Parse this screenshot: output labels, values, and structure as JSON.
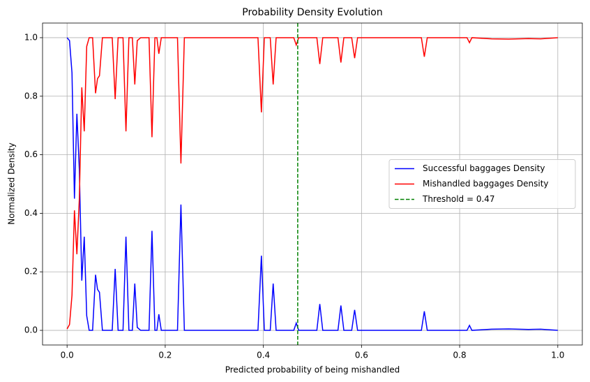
{
  "chart_data": {
    "type": "line",
    "title": "Probability Density Evolution",
    "xlabel": "Predicted probability of being mishandled",
    "ylabel": "Normalized Density",
    "x": [
      0,
      0.005,
      0.01,
      0.015,
      0.02,
      0.025,
      0.03,
      0.035,
      0.04,
      0.045,
      0.052,
      0.058,
      0.062,
      0.066,
      0.072,
      0.092,
      0.098,
      0.104,
      0.114,
      0.12,
      0.126,
      0.133,
      0.138,
      0.143,
      0.15,
      0.167,
      0.173,
      0.179,
      0.183,
      0.187,
      0.192,
      0.225,
      0.232,
      0.239,
      0.389,
      0.396,
      0.402,
      0.414,
      0.42,
      0.426,
      0.462,
      0.467,
      0.472,
      0.509,
      0.515,
      0.521,
      0.552,
      0.558,
      0.564,
      0.58,
      0.586,
      0.592,
      0.722,
      0.728,
      0.734,
      0.815,
      0.82,
      0.825,
      0.865,
      0.9,
      0.94,
      0.965,
      1.0
    ],
    "series": [
      {
        "name": "Successful baggages Density",
        "color": "#0000ff",
        "values": [
          1.0,
          0.99,
          0.88,
          0.45,
          0.74,
          0.55,
          0.17,
          0.32,
          0.05,
          0.0,
          0.0,
          0.19,
          0.14,
          0.13,
          0.0,
          0.0,
          0.21,
          0.0,
          0.0,
          0.32,
          0.0,
          0.0,
          0.16,
          0.01,
          0.0,
          0.0,
          0.34,
          0.0,
          0.0,
          0.055,
          0.0,
          0.0,
          0.43,
          0.0,
          0.0,
          0.255,
          0.0,
          0.0,
          0.16,
          0.0,
          0.0,
          0.025,
          0.0,
          0.0,
          0.09,
          0.0,
          0.0,
          0.085,
          0.0,
          0.0,
          0.07,
          0.0,
          0.0,
          0.065,
          0.0,
          0.0,
          0.017,
          0.0,
          0.004,
          0.005,
          0.003,
          0.004,
          0.0
        ]
      },
      {
        "name": "Mishandled baggages Density",
        "color": "#ff0000",
        "values": [
          0.005,
          0.02,
          0.12,
          0.41,
          0.26,
          0.45,
          0.83,
          0.68,
          0.97,
          1.0,
          1.0,
          0.81,
          0.86,
          0.87,
          1.0,
          1.0,
          0.79,
          1.0,
          1.0,
          0.68,
          1.0,
          1.0,
          0.84,
          0.99,
          1.0,
          1.0,
          0.66,
          1.0,
          1.0,
          0.945,
          1.0,
          1.0,
          0.57,
          1.0,
          1.0,
          0.745,
          1.0,
          1.0,
          0.84,
          1.0,
          1.0,
          0.975,
          1.0,
          1.0,
          0.91,
          1.0,
          1.0,
          0.915,
          1.0,
          1.0,
          0.93,
          1.0,
          1.0,
          0.935,
          1.0,
          1.0,
          0.983,
          1.0,
          0.996,
          0.995,
          0.997,
          0.996,
          1.0
        ]
      }
    ],
    "threshold": {
      "value": 0.47,
      "label": "Threshold = 0.47",
      "color": "#008000"
    },
    "xlim": [
      -0.05,
      1.05
    ],
    "ylim": [
      -0.05,
      1.05
    ],
    "xticks": [
      {
        "value": 0,
        "label": "0.0"
      },
      {
        "value": 0.2,
        "label": "0.2"
      },
      {
        "value": 0.4,
        "label": "0.4"
      },
      {
        "value": 0.6,
        "label": "0.6"
      },
      {
        "value": 0.8,
        "label": "0.8"
      },
      {
        "value": 1,
        "label": "1.0"
      }
    ],
    "yticks": [
      {
        "value": 0,
        "label": "0.0"
      },
      {
        "value": 0.2,
        "label": "0.2"
      },
      {
        "value": 0.4,
        "label": "0.4"
      },
      {
        "value": 0.6,
        "label": "0.6"
      },
      {
        "value": 0.8,
        "label": "0.8"
      },
      {
        "value": 1,
        "label": "1.0"
      }
    ],
    "grid": true,
    "legend_position": "center right"
  }
}
